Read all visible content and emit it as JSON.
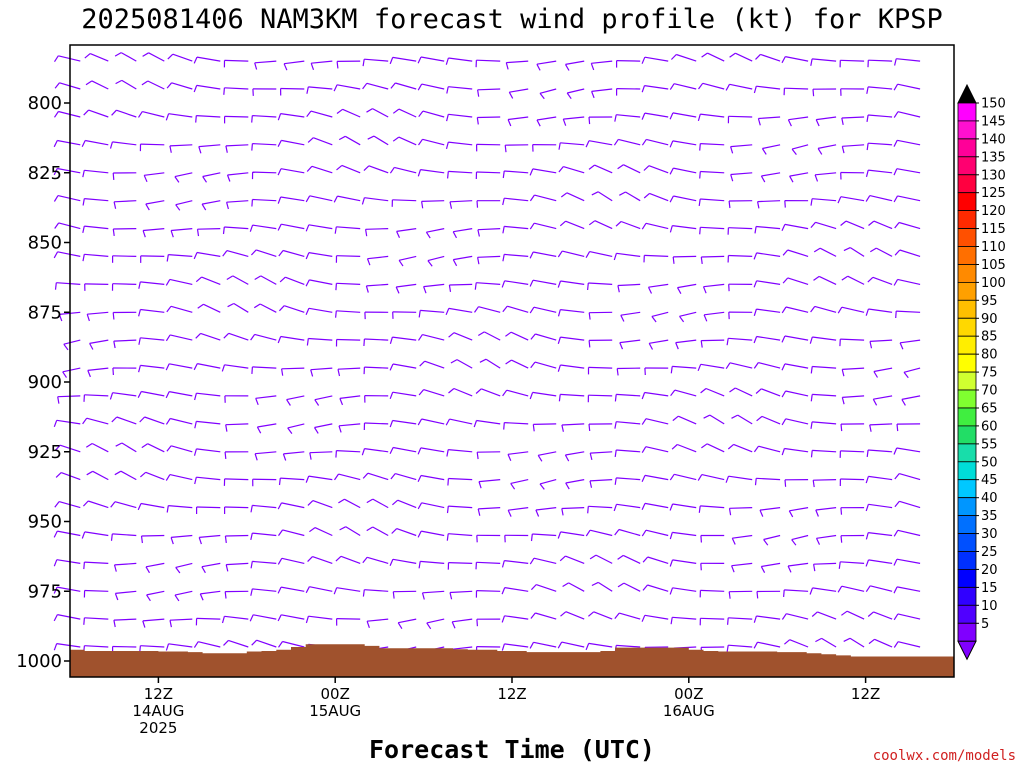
{
  "chart_data": {
    "type": "wind-barb-profile",
    "title": "2025081406 NAM3KM forecast wind profile (kt) for KPSP",
    "xlabel": "Forecast Time (UTC)",
    "credit": "coolwx.com/models",
    "yaxis": {
      "ticks": [
        "800",
        "825",
        "850",
        "875",
        "900",
        "925",
        "950",
        "975",
        "1000"
      ],
      "ylim": [
        780,
        1003
      ]
    },
    "xaxis": {
      "start_hour": 0,
      "end_hour": 60,
      "ticks": [
        {
          "hour": 6,
          "lines": [
            "12Z",
            "14AUG",
            "2025"
          ]
        },
        {
          "hour": 18,
          "lines": [
            "00Z",
            "15AUG"
          ]
        },
        {
          "hour": 30,
          "lines": [
            "12Z"
          ]
        },
        {
          "hour": 42,
          "lines": [
            "00Z",
            "16AUG"
          ]
        },
        {
          "hour": 54,
          "lines": [
            "12Z"
          ]
        }
      ]
    },
    "barb_color": "#8000ff",
    "barb_columns": {
      "count": 31,
      "start_hour": 0.7,
      "step_hour": 1.9
    },
    "barb_levels": [
      785,
      795,
      805,
      815,
      825,
      835,
      845,
      855,
      865,
      875,
      885,
      895,
      905,
      915,
      925,
      935,
      945,
      955,
      965,
      975,
      985,
      995
    ],
    "surface_pressure": [
      996,
      996.4,
      996.4,
      996.4,
      996.4,
      996.4,
      996.6,
      996.6,
      996.8,
      997.2,
      997.2,
      997.2,
      996.6,
      996.4,
      996,
      995,
      994,
      994,
      994,
      994,
      994.6,
      995.4,
      995.4,
      995.4,
      995.4,
      995.4,
      995.8,
      996,
      996,
      996.4,
      996.4,
      996.8,
      996.8,
      996.8,
      996.8,
      996.8,
      996.4,
      995.2,
      995.2,
      995.2,
      995.2,
      995.2,
      996,
      996.4,
      996.6,
      996.6,
      996.6,
      996.6,
      996.8,
      996.8,
      997.2,
      997.6,
      998,
      998.4,
      998.4,
      998.4,
      998.4,
      998.4,
      998.4,
      998.4
    ],
    "surface_color": "#a0522d",
    "colorbar": {
      "labels": [
        "150",
        "145",
        "140",
        "135",
        "130",
        "125",
        "120",
        "115",
        "110",
        "105",
        "100",
        "95",
        "90",
        "85",
        "80",
        "75",
        "70",
        "65",
        "60",
        "55",
        "50",
        "45",
        "40",
        "35",
        "30",
        "25",
        "20",
        "15",
        "10",
        "5"
      ],
      "colors": [
        "#ff00ff",
        "#ff10d0",
        "#ff0098",
        "#ff0070",
        "#ff0040",
        "#ff0000",
        "#ff2a00",
        "#ff5000",
        "#ff6f00",
        "#ff8a00",
        "#ffa000",
        "#ffbf00",
        "#ffd800",
        "#ffee00",
        "#ffff00",
        "#d0ff30",
        "#80ff30",
        "#40ee40",
        "#22dd66",
        "#18ddaa",
        "#00ddd8",
        "#00c8ff",
        "#0096ff",
        "#0070ff",
        "#0050ff",
        "#0030ff",
        "#0000ff",
        "#3000ff",
        "#5000ff",
        "#8000ff"
      ],
      "top_arrow_color": "#000000",
      "bottom_arrow_color": "#8000ff"
    }
  }
}
